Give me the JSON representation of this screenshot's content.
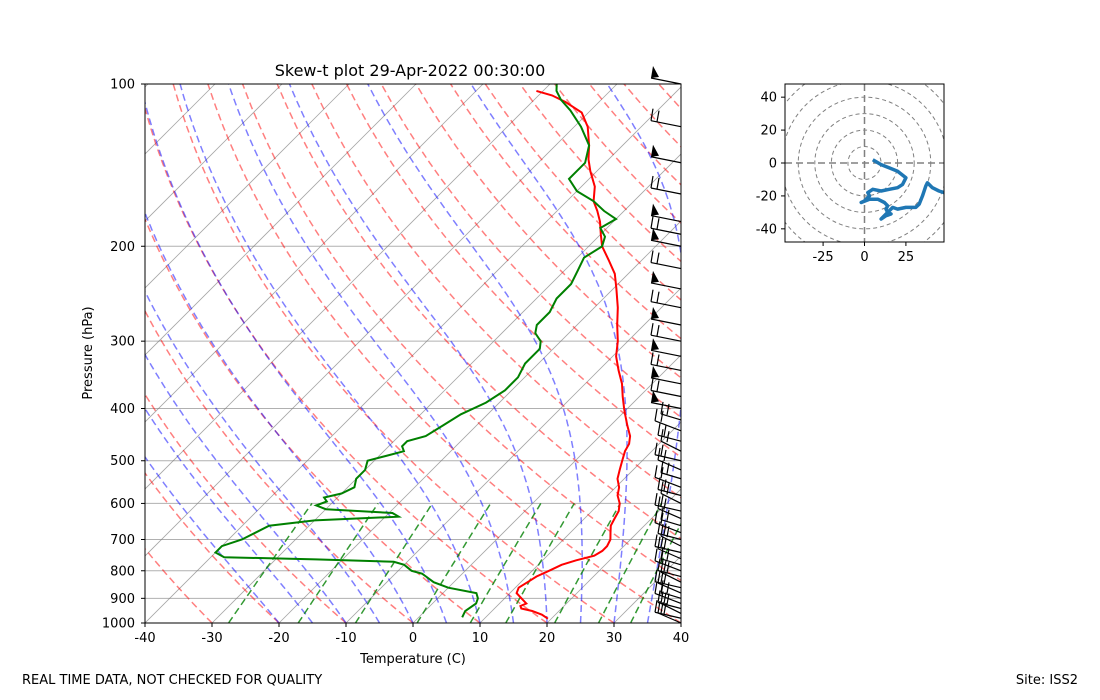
{
  "footer": {
    "quality_note": "REAL TIME DATA, NOT CHECKED FOR QUALITY",
    "site": "Site: ISS2"
  },
  "colors": {
    "temperature": "#ff0000",
    "dewpoint": "#008000",
    "dry_adiabat": "#ff0000",
    "moist_adiabat": "#0000ff",
    "mixing_ratio": "#008000",
    "isotherm": "#808080",
    "hodograph": "#1f77b4",
    "barb": "#000000"
  },
  "chart_data": [
    {
      "type": "line",
      "subtype": "skew-t log-p",
      "title": "Skew-t plot 29-Apr-2022 00:30:00",
      "xlabel": "Temperature (C)",
      "ylabel": "Pressure (hPa)",
      "xlim": [
        -40,
        40
      ],
      "ylim": [
        1000,
        100
      ],
      "y_scale": "log",
      "x_ticks": [
        -40,
        -30,
        -20,
        -10,
        0,
        10,
        20,
        30,
        40
      ],
      "y_ticks": [
        100,
        200,
        300,
        400,
        500,
        600,
        700,
        800,
        900,
        1000
      ],
      "grid": true,
      "series": [
        {
          "role": "temperature",
          "points": [
            [
              982,
              19.5
            ],
            [
              965,
              18
            ],
            [
              950,
              16
            ],
            [
              940,
              14
            ],
            [
              930,
              13.5
            ],
            [
              920,
              14
            ],
            [
              900,
              12.5
            ],
            [
              880,
              11
            ],
            [
              860,
              10.5
            ],
            [
              840,
              11
            ],
            [
              820,
              11.5
            ],
            [
              800,
              12.5
            ],
            [
              780,
              13.5
            ],
            [
              765,
              15
            ],
            [
              750,
              17
            ],
            [
              735,
              17.5
            ],
            [
              720,
              17.5
            ],
            [
              700,
              17
            ],
            [
              680,
              16
            ],
            [
              660,
              15
            ],
            [
              640,
              14.5
            ],
            [
              620,
              14
            ],
            [
              600,
              13
            ],
            [
              580,
              11.5
            ],
            [
              560,
              10.5
            ],
            [
              540,
              9
            ],
            [
              520,
              8
            ],
            [
              500,
              7
            ],
            [
              480,
              6
            ],
            [
              465,
              5.5
            ],
            [
              450,
              4.5
            ],
            [
              430,
              2.5
            ],
            [
              410,
              0.5
            ],
            [
              400,
              -0.5
            ],
            [
              380,
              -2.5
            ],
            [
              360,
              -4.5
            ],
            [
              340,
              -7
            ],
            [
              320,
              -9.5
            ],
            [
              300,
              -11.5
            ],
            [
              280,
              -14
            ],
            [
              260,
              -16.5
            ],
            [
              240,
              -19.5
            ],
            [
              225,
              -22
            ],
            [
              212,
              -25
            ],
            [
              200,
              -28
            ],
            [
              190,
              -30
            ],
            [
              180,
              -32
            ],
            [
              172,
              -34
            ],
            [
              165,
              -36
            ],
            [
              155,
              -38
            ],
            [
              145,
              -41
            ],
            [
              138,
              -43
            ],
            [
              130,
              -45
            ],
            [
              120,
              -48
            ],
            [
              113,
              -51
            ],
            [
              108,
              -55
            ],
            [
              105,
              -58
            ],
            [
              103,
              -61
            ]
          ]
        },
        {
          "role": "dewpoint",
          "points": [
            [
              976,
              6.5
            ],
            [
              950,
              6
            ],
            [
              920,
              6.5
            ],
            [
              900,
              6
            ],
            [
              880,
              5
            ],
            [
              860,
              0
            ],
            [
              840,
              -3
            ],
            [
              820,
              -5
            ],
            [
              810,
              -6
            ],
            [
              800,
              -8
            ],
            [
              790,
              -9
            ],
            [
              780,
              -10
            ],
            [
              770,
              -12
            ],
            [
              762,
              -24
            ],
            [
              755,
              -38
            ],
            [
              740,
              -40
            ],
            [
              720,
              -40
            ],
            [
              700,
              -38
            ],
            [
              680,
              -37
            ],
            [
              660,
              -36
            ],
            [
              645,
              -30
            ],
            [
              635,
              -18
            ],
            [
              625,
              -19.5
            ],
            [
              615,
              -30
            ],
            [
              605,
              -32
            ],
            [
              595,
              -31
            ],
            [
              585,
              -32
            ],
            [
              575,
              -30
            ],
            [
              560,
              -29
            ],
            [
              540,
              -30
            ],
            [
              520,
              -30
            ],
            [
              500,
              -31
            ],
            [
              490,
              -29
            ],
            [
              480,
              -27
            ],
            [
              470,
              -28
            ],
            [
              460,
              -28
            ],
            [
              450,
              -26
            ],
            [
              430,
              -25
            ],
            [
              410,
              -24
            ],
            [
              390,
              -22
            ],
            [
              370,
              -21
            ],
            [
              350,
              -21
            ],
            [
              330,
              -22
            ],
            [
              310,
              -22
            ],
            [
              300,
              -23
            ],
            [
              290,
              -25
            ],
            [
              280,
              -26
            ],
            [
              265,
              -26
            ],
            [
              250,
              -27
            ],
            [
              235,
              -27
            ],
            [
              222,
              -28
            ],
            [
              210,
              -29
            ],
            [
              200,
              -28
            ],
            [
              192,
              -29
            ],
            [
              185,
              -31
            ],
            [
              178,
              -30
            ],
            [
              172,
              -33
            ],
            [
              165,
              -36
            ],
            [
              158,
              -40
            ],
            [
              150,
              -43
            ],
            [
              140,
              -43
            ],
            [
              130,
              -45
            ],
            [
              120,
              -49
            ],
            [
              112,
              -53
            ],
            [
              107,
              -56
            ],
            [
              103,
              -58
            ],
            [
              100,
              -59
            ]
          ]
        }
      ]
    },
    {
      "type": "line",
      "subtype": "hodograph",
      "xlim": [
        -48,
        48
      ],
      "ylim": [
        -48,
        48
      ],
      "x_ticks": [
        -25,
        0,
        25
      ],
      "y_ticks": [
        -40,
        -20,
        0,
        20,
        40
      ],
      "rings": [
        10,
        20,
        30,
        40,
        50,
        60,
        70
      ],
      "points": [
        [
          5,
          2
        ],
        [
          10,
          -1
        ],
        [
          15,
          -3
        ],
        [
          20,
          -5
        ],
        [
          25,
          -9
        ],
        [
          23,
          -13
        ],
        [
          20,
          -15
        ],
        [
          15,
          -16
        ],
        [
          10,
          -17
        ],
        [
          5,
          -16
        ],
        [
          2,
          -18
        ],
        [
          3,
          -20
        ],
        [
          0,
          -23
        ],
        [
          -2,
          -24
        ],
        [
          3,
          -22
        ],
        [
          8,
          -22
        ],
        [
          12,
          -24
        ],
        [
          14,
          -26
        ],
        [
          13,
          -28
        ],
        [
          14,
          -30
        ],
        [
          16,
          -31
        ],
        [
          13,
          -32
        ],
        [
          10,
          -34
        ],
        [
          14,
          -30
        ],
        [
          17,
          -27
        ],
        [
          20,
          -28
        ],
        [
          25,
          -27
        ],
        [
          28,
          -27
        ],
        [
          31,
          -27
        ],
        [
          33,
          -25
        ],
        [
          35,
          -20
        ],
        [
          37,
          -14
        ],
        [
          38,
          -12
        ],
        [
          41,
          -15
        ],
        [
          45,
          -17
        ],
        [
          48,
          -18
        ]
      ]
    }
  ]
}
